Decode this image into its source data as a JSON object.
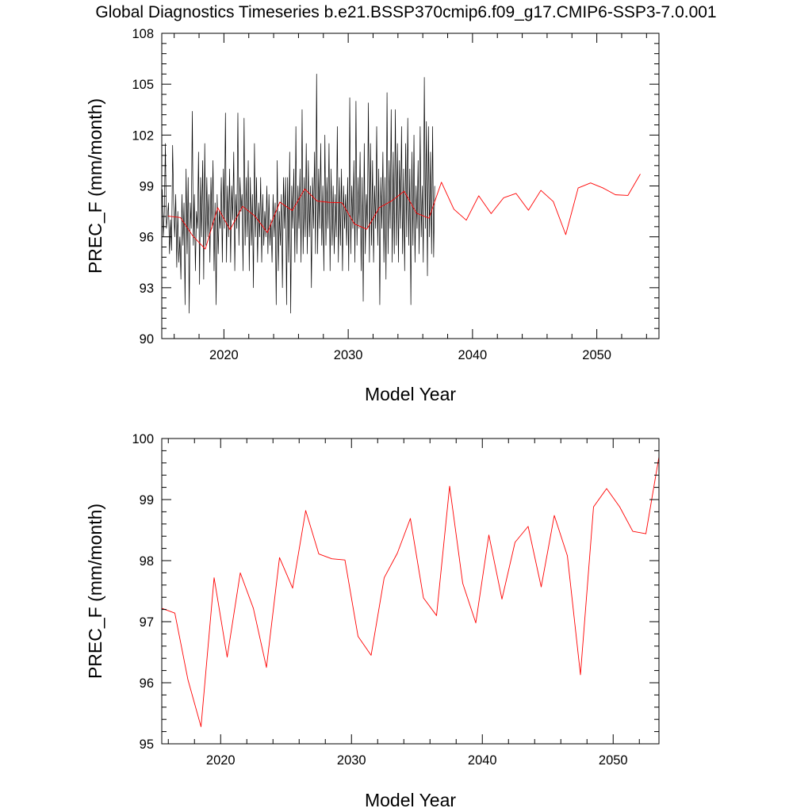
{
  "title": "Global Diagnostics Timeseries b.e21.BSSP370cmip6.f09_g17.CMIP6-SSP3-7.0.001",
  "colors": {
    "monthly": "#000000",
    "annual": "#ff0000",
    "axis": "#000000"
  },
  "chart_data": [
    {
      "type": "line",
      "xlabel": "Model Year",
      "ylabel": "PREC_F (mm/month)",
      "xlim": [
        2015,
        2055
      ],
      "ylim": [
        90,
        108
      ],
      "xticks": [
        2020,
        2030,
        2040,
        2050
      ],
      "yticks": [
        90,
        93,
        96,
        99,
        102,
        105,
        108
      ],
      "series": [
        {
          "color": "black",
          "x_start": 2015.04,
          "x_step": 0.0833333,
          "values": [
            98.8,
            96.0,
            97.5,
            101.5,
            96.5,
            97.2,
            98.0,
            95.0,
            97.0,
            95.2,
            101.4,
            98.0,
            96.0,
            98.5,
            94.2,
            97.5,
            94.5,
            96.0,
            93.5,
            98.5,
            95.5,
            98.0,
            92.0,
            100.0,
            95.0,
            99.5,
            91.5,
            98.0,
            96.5,
            103.4,
            95.5,
            98.5,
            94.0,
            97.5,
            96.5,
            101.0,
            93.2,
            99.5,
            96.0,
            100.5,
            93.5,
            101.5,
            95.5,
            99.5,
            96.0,
            98.5,
            94.5,
            99.5,
            96.5,
            100.5,
            94.0,
            98.0,
            92.0,
            98.5,
            95.0,
            97.5,
            96.5,
            99.5,
            94.5,
            100.0,
            96.5,
            103.3,
            94.5,
            99.0,
            96.0,
            100.0,
            94.5,
            99.0,
            97.0,
            101.0,
            94.0,
            98.5,
            96.5,
            103.3,
            95.5,
            99.5,
            97.5,
            98.5,
            94.0,
            103.0,
            95.5,
            99.5,
            96.0,
            100.5,
            94.0,
            99.5,
            95.5,
            98.5,
            93.0,
            101.5,
            96.0,
            99.5,
            94.5,
            98.0,
            96.0,
            99.5,
            94.5,
            98.5,
            95.5,
            97.5,
            96.0,
            99.0,
            95.0,
            98.5,
            95.5,
            97.0,
            94.5,
            98.5,
            96.0,
            98.0,
            92.0,
            100.5,
            94.0,
            97.5,
            95.5,
            98.5,
            93.0,
            99.5,
            96.5,
            99.5,
            92.0,
            99.5,
            94.5,
            101.0,
            91.5,
            99.0,
            96.5,
            100.0,
            94.5,
            102.5,
            95.0,
            99.0,
            96.5,
            100.0,
            94.5,
            103.5,
            95.0,
            99.5,
            96.0,
            101.5,
            95.0,
            100.5,
            96.0,
            99.0,
            93.0,
            99.5,
            96.5,
            101.0,
            95.0,
            105.6,
            95.0,
            100.0,
            96.5,
            101.5,
            95.5,
            99.0,
            94.0,
            102.0,
            95.5,
            99.5,
            96.5,
            101.5,
            94.0,
            100.0,
            95.5,
            99.0,
            95.0,
            98.5,
            96.0,
            102.5,
            94.5,
            99.5,
            95.5,
            100.0,
            94.0,
            99.0,
            96.5,
            98.5,
            95.5,
            99.5,
            94.0,
            104.2,
            95.0,
            99.0,
            96.5,
            100.5,
            94.5,
            104.0,
            95.5,
            99.5,
            96.5,
            101.0,
            94.0,
            99.5,
            92.2,
            101.5,
            95.0,
            98.5,
            96.5,
            103.9,
            94.5,
            101.5,
            95.5,
            100.5,
            94.5,
            99.0,
            96.5,
            102.5,
            95.5,
            100.0,
            92.0,
            99.5,
            96.5,
            101.0,
            94.5,
            99.5,
            93.5,
            104.5,
            95.0,
            100.5,
            96.5,
            103.5,
            94.5,
            101.0,
            95.0,
            103.5,
            95.5,
            101.5,
            94.5,
            100.5,
            96.5,
            102.5,
            95.0,
            100.0,
            94.0,
            101.5,
            96.0,
            103.0,
            95.5,
            100.0,
            92.0,
            101.0,
            95.5,
            102.0,
            94.5,
            99.0,
            96.5,
            100.5,
            95.0,
            102.5,
            96.0,
            99.0,
            94.5,
            105.4,
            96.5,
            102.8,
            93.7,
            102.5,
            96.0,
            101.0,
            95.0,
            102.5,
            94.8,
            99.0
          ]
        },
        {
          "color": "red",
          "x": [
            2015.5,
            2016.5,
            2017.5,
            2018.5,
            2019.5,
            2020.5,
            2021.5,
            2022.5,
            2023.5,
            2024.5,
            2025.5,
            2026.5,
            2027.5,
            2028.5,
            2029.5,
            2030.5,
            2031.5,
            2032.5,
            2033.5,
            2034.5,
            2035.5,
            2036.5,
            2037.5,
            2038.5,
            2039.5,
            2040.5,
            2041.5,
            2042.5,
            2043.5,
            2044.5,
            2045.5,
            2046.5,
            2047.5,
            2048.5,
            2049.5,
            2050.5,
            2051.5,
            2052.5,
            2053.5
          ],
          "values": [
            97.22,
            97.14,
            96.05,
            95.28,
            97.72,
            96.42,
            97.8,
            97.22,
            96.25,
            98.05,
            97.55,
            98.82,
            98.11,
            98.03,
            98.01,
            96.76,
            96.45,
            97.72,
            98.12,
            98.69,
            97.39,
            97.1,
            99.22,
            97.63,
            96.98,
            98.42,
            97.37,
            98.3,
            98.56,
            97.57,
            98.74,
            98.08,
            96.13,
            98.88,
            99.18,
            98.88,
            98.48,
            98.44,
            99.7
          ]
        }
      ]
    },
    {
      "type": "line",
      "xlabel": "Model Year",
      "ylabel": "PREC_F (mm/month)",
      "xlim": [
        2015.5,
        2053.5
      ],
      "ylim": [
        95,
        100
      ],
      "xticks": [
        2020,
        2030,
        2040,
        2050
      ],
      "yticks": [
        95,
        96,
        97,
        98,
        99,
        100
      ],
      "series": [
        {
          "color": "red",
          "x": [
            2015.5,
            2016.5,
            2017.5,
            2018.5,
            2019.5,
            2020.5,
            2021.5,
            2022.5,
            2023.5,
            2024.5,
            2025.5,
            2026.5,
            2027.5,
            2028.5,
            2029.5,
            2030.5,
            2031.5,
            2032.5,
            2033.5,
            2034.5,
            2035.5,
            2036.5,
            2037.5,
            2038.5,
            2039.5,
            2040.5,
            2041.5,
            2042.5,
            2043.5,
            2044.5,
            2045.5,
            2046.5,
            2047.5,
            2048.5,
            2049.5,
            2050.5,
            2051.5,
            2052.5,
            2053.5
          ],
          "values": [
            97.22,
            97.14,
            96.05,
            95.28,
            97.72,
            96.42,
            97.8,
            97.22,
            96.25,
            98.05,
            97.55,
            98.82,
            98.11,
            98.03,
            98.01,
            96.76,
            96.45,
            97.72,
            98.12,
            98.69,
            97.39,
            97.1,
            99.22,
            97.63,
            96.98,
            98.42,
            97.37,
            98.3,
            98.56,
            97.57,
            98.74,
            98.08,
            96.13,
            98.88,
            99.18,
            98.88,
            98.48,
            98.44,
            99.7
          ]
        }
      ]
    }
  ]
}
